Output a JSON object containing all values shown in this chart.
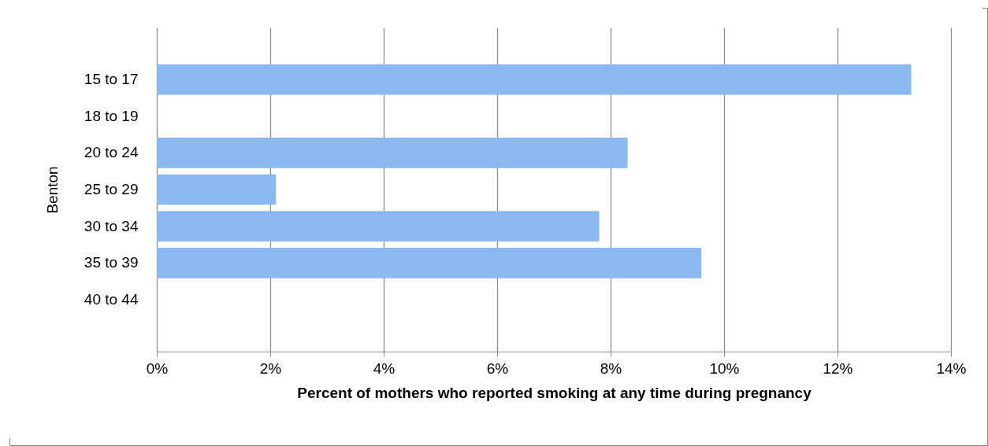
{
  "chart_data": {
    "type": "bar",
    "orientation": "horizontal",
    "ylabel": "Benton",
    "xlabel": "Percent of mothers who reported smoking at any time during pregnancy",
    "categories": [
      "15 to 17",
      "18 to 19",
      "20 to 24",
      "25 to 29",
      "30 to 34",
      "35 to 39",
      "40 to 44"
    ],
    "values": [
      13.3,
      null,
      8.3,
      2.1,
      7.8,
      9.6,
      null
    ],
    "color": "#89b9ef",
    "xlim": [
      0,
      14
    ],
    "xticks": [
      {
        "value": 0,
        "label": "0%"
      },
      {
        "value": 2,
        "label": "2%"
      },
      {
        "value": 4,
        "label": "4%"
      },
      {
        "value": 6,
        "label": "6%"
      },
      {
        "value": 8,
        "label": "8%"
      },
      {
        "value": 10,
        "label": "10%"
      },
      {
        "value": 12,
        "label": "12%"
      },
      {
        "value": 14,
        "label": "14%"
      }
    ],
    "grid": "x"
  }
}
